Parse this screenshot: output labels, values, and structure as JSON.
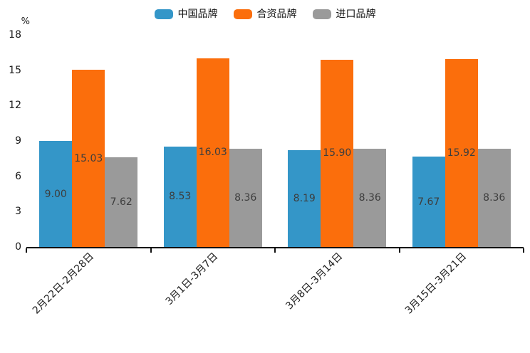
{
  "chart_data": {
    "type": "bar",
    "title": "",
    "unit_label": "%",
    "categories": [
      "2月22日-2月28日",
      "3月1日-3月7日",
      "3月8日-3月14日",
      "3月15日-3月21日"
    ],
    "series": [
      {
        "name": "中国品牌",
        "color": "#3496c8",
        "values": [
          9.0,
          8.53,
          8.19,
          7.67
        ]
      },
      {
        "name": "合资品牌",
        "color": "#fb6e0c",
        "values": [
          15.03,
          16.03,
          15.9,
          15.92
        ]
      },
      {
        "name": "进口品牌",
        "color": "#9a9a9a",
        "values": [
          7.62,
          8.36,
          8.36,
          8.36
        ]
      }
    ],
    "value_label_format": "2-decimals",
    "value_label_position": "inside-center",
    "ylim": [
      0,
      18
    ],
    "y_ticks": [
      0,
      3,
      6,
      9,
      12,
      15,
      18
    ],
    "grid": false,
    "legend_position": "top-center"
  },
  "colors": {
    "background": "#ffffff",
    "axis": "#111111",
    "tick_label": "#1a1a1a",
    "value_label": "#3d3d3d",
    "series_blue": "#3496c8",
    "series_orange": "#fb6e0c",
    "series_gray": "#9a9a9a"
  }
}
